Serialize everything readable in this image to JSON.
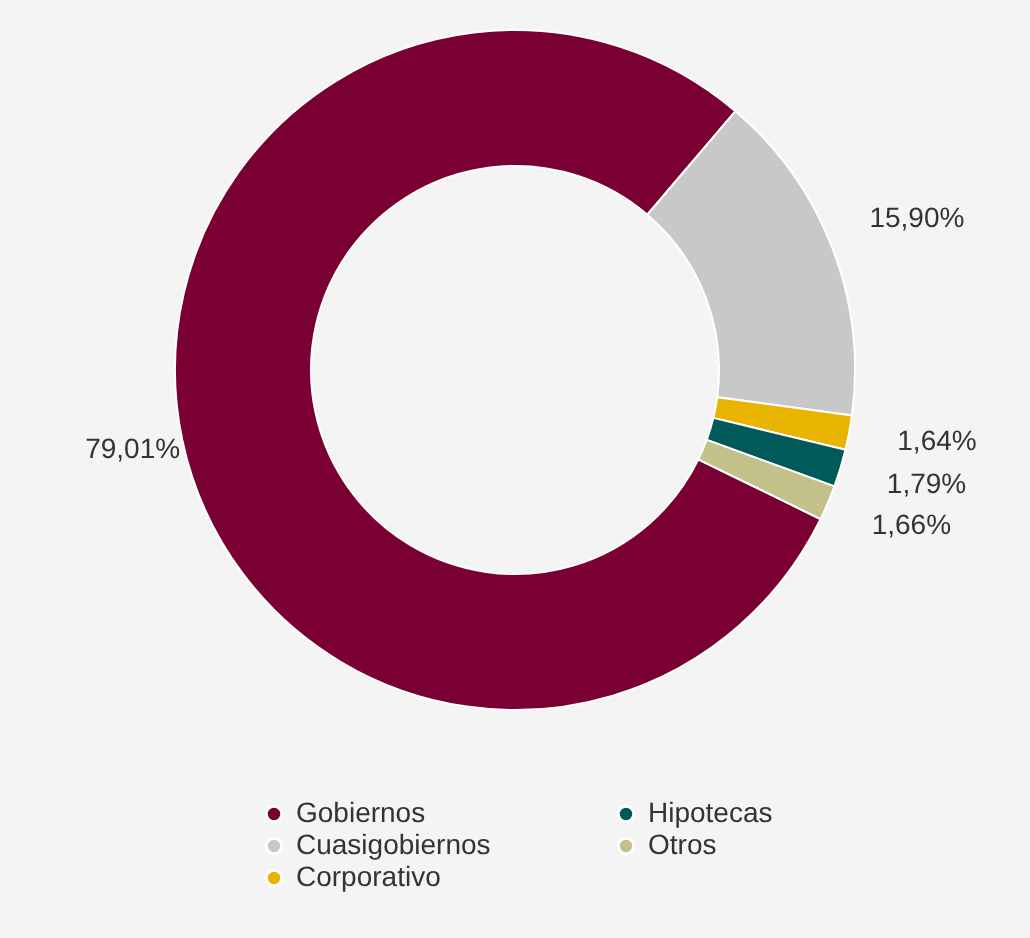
{
  "chart_data": {
    "type": "donut",
    "categories": [
      "Gobiernos",
      "Cuasigobiernos",
      "Corporativo",
      "Hipotecas",
      "Otros"
    ],
    "values": [
      79.01,
      15.9,
      1.64,
      1.79,
      1.66
    ],
    "colors": [
      "#7a0033",
      "#c8c8c8",
      "#e8b400",
      "#005a5a",
      "#c4c08a"
    ],
    "value_labels": [
      "79,01%",
      "15,90%",
      "1,64%",
      "1,79%",
      "1,66%"
    ],
    "legend": "bottom"
  }
}
